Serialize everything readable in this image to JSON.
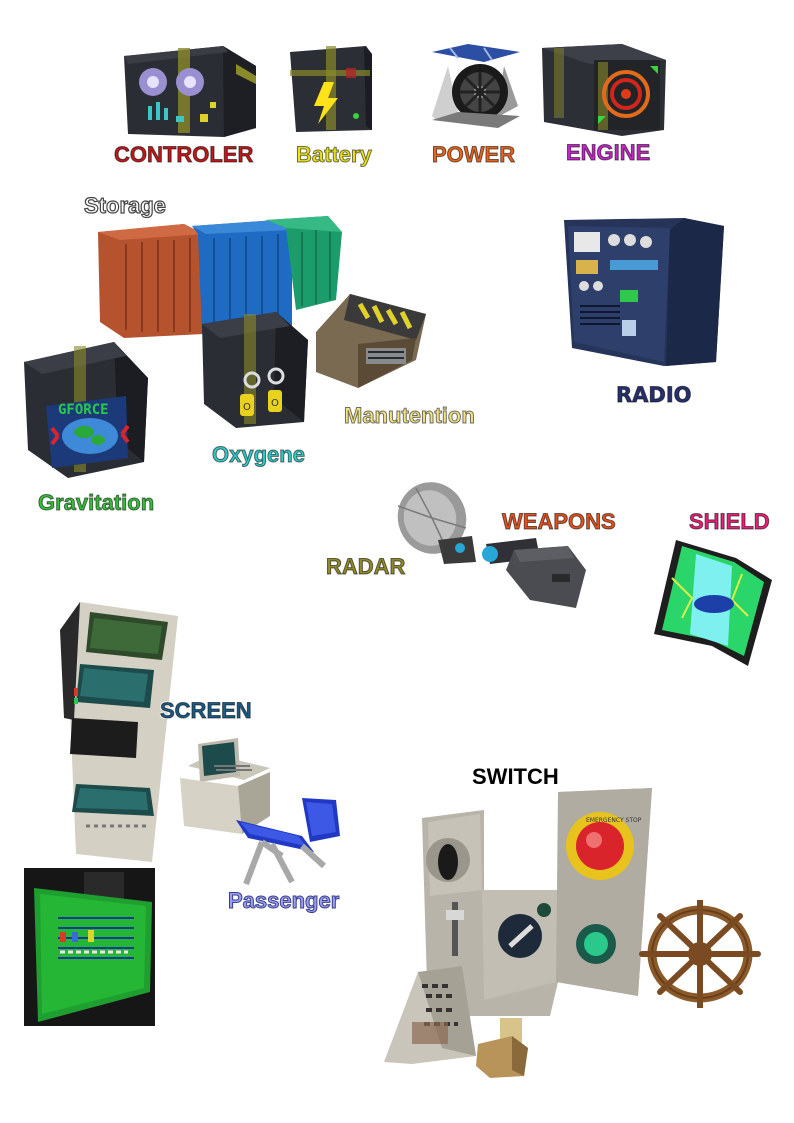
{
  "labels": {
    "controler": "CONTROLER",
    "battery": "Battery",
    "power": "POWER",
    "engine": "ENGINE",
    "storage": "Storage",
    "radio": "RADIO",
    "manutention": "Manutention",
    "oxygene": "Oxygene",
    "gravitation": "Gravitation",
    "radar": "RADAR",
    "weapons": "WEAPONS",
    "shield": "SHIELD",
    "screen": "SCREEN",
    "switch": "SWITCH",
    "passenger": "Passenger",
    "gforce_text": "GFORCE",
    "emergency_text": "EMERGENCY STOP"
  },
  "colors": {
    "controler": "#c2181b",
    "battery": "#e9e21d",
    "power": "#e5641e",
    "engine": "#c424c8",
    "storage": "#ffffff",
    "radio": "#27306e",
    "manutention": "#efe28a",
    "oxygene": "#33c9c6",
    "gravitation": "#34c13a",
    "radar": "#8f8a2c",
    "weapons": "#e2521d",
    "shield": "#ea1e78",
    "screen": "#1b5c86",
    "switch": "#000000",
    "passenger": "#9aa0ee"
  },
  "icons": [
    "controller-block",
    "battery-block",
    "power-generator",
    "engine-block",
    "storage-containers",
    "radio-block",
    "manutention-block",
    "oxygen-block",
    "gravitation-block",
    "radar-dish",
    "weapon-turret",
    "shield-panel",
    "screen-tower",
    "laptop-console",
    "passenger-seat",
    "hologram-screen",
    "switch-panel",
    "ship-wheel",
    "lever-box"
  ]
}
